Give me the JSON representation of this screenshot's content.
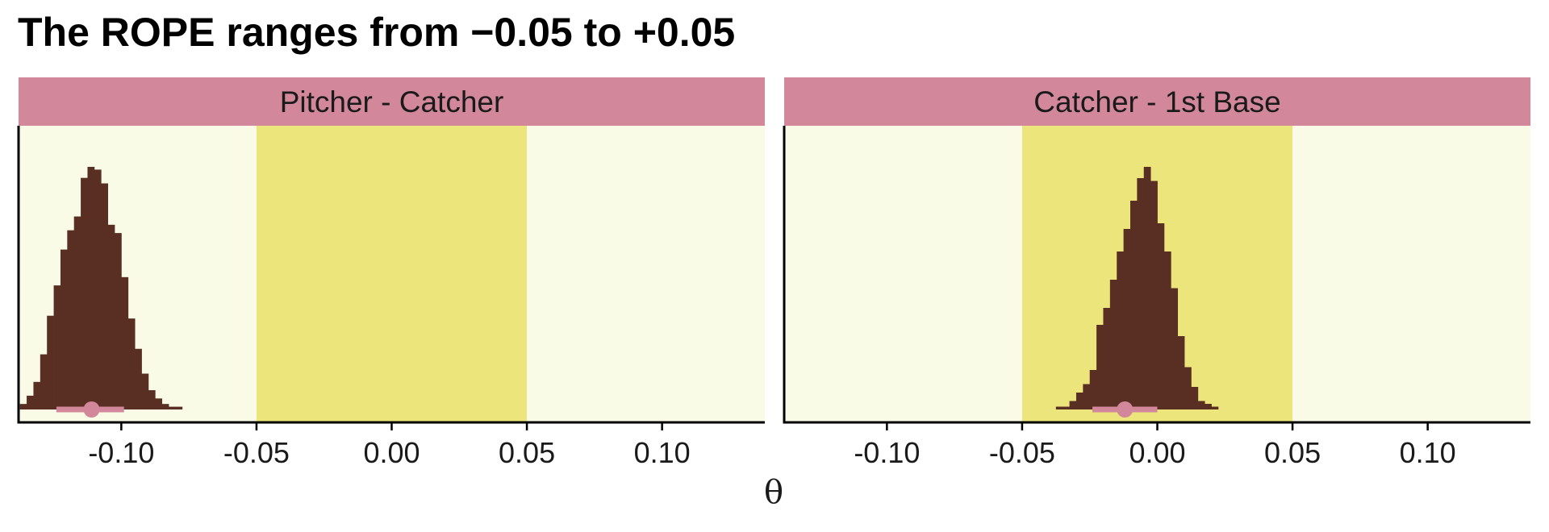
{
  "chart_data": {
    "type": "histogram-facets",
    "title": "The ROPE ranges from −0.05 to +0.05",
    "xlabel": "θ",
    "ylabel": "",
    "xlim": [
      -0.138,
      0.138
    ],
    "xticks": [
      -0.1,
      -0.05,
      0.0,
      0.05,
      0.1
    ],
    "xtick_labels": [
      "-0.10",
      "-0.05",
      "0.00",
      "0.05",
      "0.10"
    ],
    "rope": [
      -0.05,
      0.05
    ],
    "colors": {
      "panel_bg": "#f9fbe6",
      "rope_fill": "#ebe57c",
      "strip_bg": "#d2889a",
      "histogram": "#5a2f23",
      "interval": "#d2889a",
      "axis": "#000000"
    },
    "bin_width": 0.0025,
    "panels": [
      {
        "label": "Pitcher - Catcher",
        "bins_start": -0.1375,
        "counts": [
          2,
          5,
          10,
          20,
          34,
          45,
          58,
          65,
          70,
          84,
          88,
          87,
          82,
          67,
          64,
          48,
          33,
          22,
          13,
          7,
          4,
          2,
          1,
          1
        ],
        "point_estimate": -0.111,
        "interval": [
          -0.124,
          -0.099
        ]
      },
      {
        "label": "Catcher - 1st Base",
        "bins_start": -0.0375,
        "counts": [
          1,
          1,
          3,
          6,
          9,
          14,
          30,
          36,
          46,
          56,
          64,
          74,
          82,
          86,
          81,
          66,
          56,
          43,
          26,
          15,
          8,
          3,
          2,
          1
        ],
        "point_estimate": -0.012,
        "interval": [
          -0.024,
          0.0
        ]
      }
    ]
  }
}
